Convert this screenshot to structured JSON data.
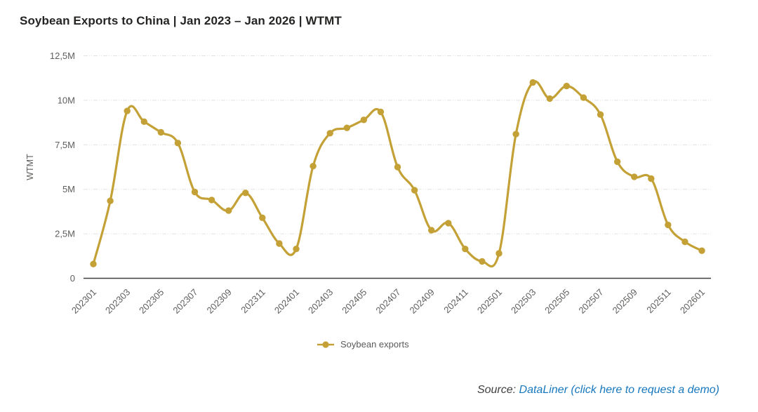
{
  "page": {
    "background": "#ffffff"
  },
  "header": {
    "title": "Soybean Exports to China | Jan 2023 – Jan 2026 | WTMT"
  },
  "chart_data": {
    "type": "line",
    "title": "Soybean Exports to China | Jan 2023 – Jan 2026 | WTMT",
    "unit": "M",
    "ylabel": "WTMT",
    "ylim": [
      0,
      12500000
    ],
    "grid": "horizontal-dotted",
    "legend_position": "bottom",
    "line_color": "#C4A136",
    "gridline_color": "#E1E1E1",
    "axis_line_color": "#3F3F3F",
    "axis_text_color": "#605E5C",
    "categories": [
      "202301",
      "202302",
      "202303",
      "202304",
      "202305",
      "202306",
      "202307",
      "202308",
      "202309",
      "202310",
      "202311",
      "202312",
      "202401",
      "202402",
      "202403",
      "202404",
      "202405",
      "202406",
      "202407",
      "202408",
      "202409",
      "202410",
      "202411",
      "202412",
      "202501",
      "202502",
      "202503",
      "202504",
      "202505",
      "202506",
      "202507",
      "202508",
      "202509",
      "202510",
      "202511",
      "202512",
      "202601"
    ],
    "series": [
      {
        "name": "Soybean exports",
        "values_millions": [
          0.8,
          4.35,
          9.4,
          8.8,
          8.2,
          7.6,
          4.85,
          4.4,
          3.8,
          4.8,
          3.4,
          1.95,
          1.65,
          6.3,
          8.15,
          8.45,
          8.9,
          9.35,
          6.25,
          4.95,
          2.7,
          3.1,
          1.65,
          0.95,
          1.4,
          8.1,
          11.0,
          10.1,
          10.8,
          10.15,
          9.2,
          6.55,
          5.7,
          5.6,
          3.0,
          2.05,
          1.55
        ]
      }
    ],
    "ytick_values_millions": [
      0,
      2.5,
      5,
      7.5,
      10,
      12.5
    ],
    "ytick_labels": [
      "0",
      "2,5M",
      "5M",
      "7,5M",
      "10M",
      "12,5M"
    ],
    "xtick_labels": [
      "202301",
      "202303",
      "202305",
      "202307",
      "202309",
      "202311",
      "202401",
      "202403",
      "202405",
      "202407",
      "202409",
      "202411",
      "202501",
      "202503",
      "202505",
      "202507",
      "202509",
      "202511",
      "202601"
    ],
    "xtick_every": 2
  },
  "legend": {
    "label": "Soybean exports"
  },
  "source": {
    "prefix": "Source: ",
    "link_text": "DataLiner (click here to request a demo)",
    "link_color": "#1878BE"
  }
}
